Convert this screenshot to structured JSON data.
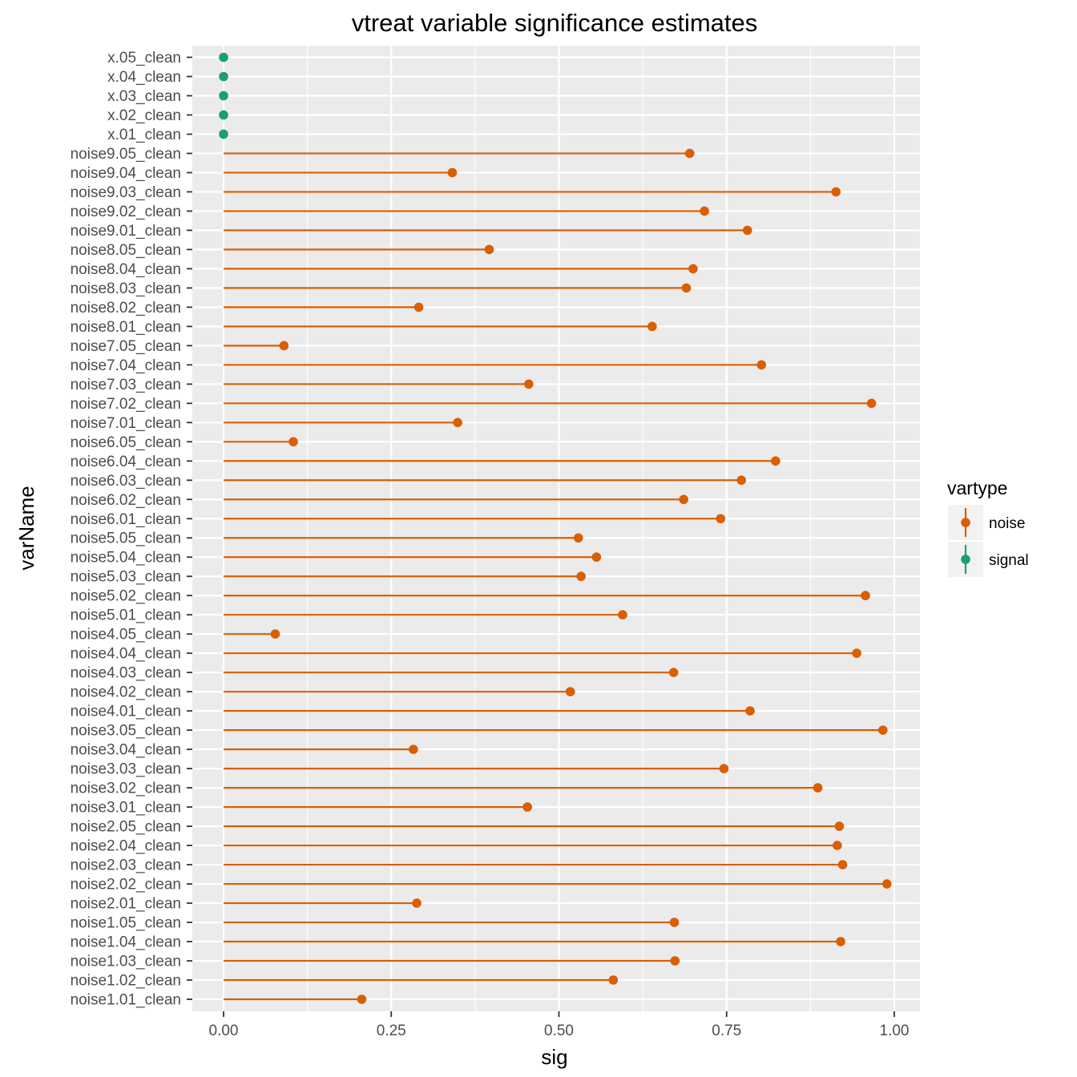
{
  "chart_data": {
    "type": "lollipop",
    "title": "vtreat variable significance estimates",
    "xlabel": "sig",
    "ylabel": "varName",
    "xlim": [
      -0.05,
      1.05
    ],
    "xticks": [
      "0.00",
      "0.25",
      "0.50",
      "0.75",
      "1.00"
    ],
    "xtick_values": [
      0,
      0.25,
      0.5,
      0.75,
      1.0
    ],
    "grid": true,
    "legend": {
      "title": "vartype",
      "position": "right",
      "entries": [
        {
          "label": "noise",
          "color": "#d95f02"
        },
        {
          "label": "signal",
          "color": "#1b9e77"
        }
      ]
    },
    "colors": {
      "noise": "#d95f02",
      "signal": "#1b9e77",
      "panel": "#ebebeb",
      "grid": "#ffffff"
    },
    "rows": [
      {
        "name": "x.05_clean",
        "sig": 0.0,
        "vartype": "signal"
      },
      {
        "name": "x.04_clean",
        "sig": 0.0,
        "vartype": "signal"
      },
      {
        "name": "x.03_clean",
        "sig": 0.0,
        "vartype": "signal"
      },
      {
        "name": "x.02_clean",
        "sig": 0.0,
        "vartype": "signal"
      },
      {
        "name": "x.01_clean",
        "sig": 0.0,
        "vartype": "signal"
      },
      {
        "name": "noise9.05_clean",
        "sig": 0.695,
        "vartype": "noise"
      },
      {
        "name": "noise9.04_clean",
        "sig": 0.341,
        "vartype": "noise"
      },
      {
        "name": "noise9.03_clean",
        "sig": 0.913,
        "vartype": "noise"
      },
      {
        "name": "noise9.02_clean",
        "sig": 0.717,
        "vartype": "noise"
      },
      {
        "name": "noise9.01_clean",
        "sig": 0.781,
        "vartype": "noise"
      },
      {
        "name": "noise8.05_clean",
        "sig": 0.396,
        "vartype": "noise"
      },
      {
        "name": "noise8.04_clean",
        "sig": 0.7,
        "vartype": "noise"
      },
      {
        "name": "noise8.03_clean",
        "sig": 0.69,
        "vartype": "noise"
      },
      {
        "name": "noise8.02_clean",
        "sig": 0.291,
        "vartype": "noise"
      },
      {
        "name": "noise8.01_clean",
        "sig": 0.639,
        "vartype": "noise"
      },
      {
        "name": "noise7.05_clean",
        "sig": 0.09,
        "vartype": "noise"
      },
      {
        "name": "noise7.04_clean",
        "sig": 0.802,
        "vartype": "noise"
      },
      {
        "name": "noise7.03_clean",
        "sig": 0.455,
        "vartype": "noise"
      },
      {
        "name": "noise7.02_clean",
        "sig": 0.966,
        "vartype": "noise"
      },
      {
        "name": "noise7.01_clean",
        "sig": 0.349,
        "vartype": "noise"
      },
      {
        "name": "noise6.05_clean",
        "sig": 0.104,
        "vartype": "noise"
      },
      {
        "name": "noise6.04_clean",
        "sig": 0.823,
        "vartype": "noise"
      },
      {
        "name": "noise6.03_clean",
        "sig": 0.772,
        "vartype": "noise"
      },
      {
        "name": "noise6.02_clean",
        "sig": 0.686,
        "vartype": "noise"
      },
      {
        "name": "noise6.01_clean",
        "sig": 0.741,
        "vartype": "noise"
      },
      {
        "name": "noise5.05_clean",
        "sig": 0.529,
        "vartype": "noise"
      },
      {
        "name": "noise5.04_clean",
        "sig": 0.556,
        "vartype": "noise"
      },
      {
        "name": "noise5.03_clean",
        "sig": 0.533,
        "vartype": "noise"
      },
      {
        "name": "noise5.02_clean",
        "sig": 0.957,
        "vartype": "noise"
      },
      {
        "name": "noise5.01_clean",
        "sig": 0.595,
        "vartype": "noise"
      },
      {
        "name": "noise4.05_clean",
        "sig": 0.077,
        "vartype": "noise"
      },
      {
        "name": "noise4.04_clean",
        "sig": 0.944,
        "vartype": "noise"
      },
      {
        "name": "noise4.03_clean",
        "sig": 0.671,
        "vartype": "noise"
      },
      {
        "name": "noise4.02_clean",
        "sig": 0.517,
        "vartype": "noise"
      },
      {
        "name": "noise4.01_clean",
        "sig": 0.785,
        "vartype": "noise"
      },
      {
        "name": "noise3.05_clean",
        "sig": 0.983,
        "vartype": "noise"
      },
      {
        "name": "noise3.04_clean",
        "sig": 0.283,
        "vartype": "noise"
      },
      {
        "name": "noise3.03_clean",
        "sig": 0.746,
        "vartype": "noise"
      },
      {
        "name": "noise3.02_clean",
        "sig": 0.886,
        "vartype": "noise"
      },
      {
        "name": "noise3.01_clean",
        "sig": 0.453,
        "vartype": "noise"
      },
      {
        "name": "noise2.05_clean",
        "sig": 0.918,
        "vartype": "noise"
      },
      {
        "name": "noise2.04_clean",
        "sig": 0.915,
        "vartype": "noise"
      },
      {
        "name": "noise2.03_clean",
        "sig": 0.923,
        "vartype": "noise"
      },
      {
        "name": "noise2.02_clean",
        "sig": 0.989,
        "vartype": "noise"
      },
      {
        "name": "noise2.01_clean",
        "sig": 0.288,
        "vartype": "noise"
      },
      {
        "name": "noise1.05_clean",
        "sig": 0.672,
        "vartype": "noise"
      },
      {
        "name": "noise1.04_clean",
        "sig": 0.92,
        "vartype": "noise"
      },
      {
        "name": "noise1.03_clean",
        "sig": 0.673,
        "vartype": "noise"
      },
      {
        "name": "noise1.02_clean",
        "sig": 0.581,
        "vartype": "noise"
      },
      {
        "name": "noise1.01_clean",
        "sig": 0.206,
        "vartype": "noise"
      }
    ]
  }
}
